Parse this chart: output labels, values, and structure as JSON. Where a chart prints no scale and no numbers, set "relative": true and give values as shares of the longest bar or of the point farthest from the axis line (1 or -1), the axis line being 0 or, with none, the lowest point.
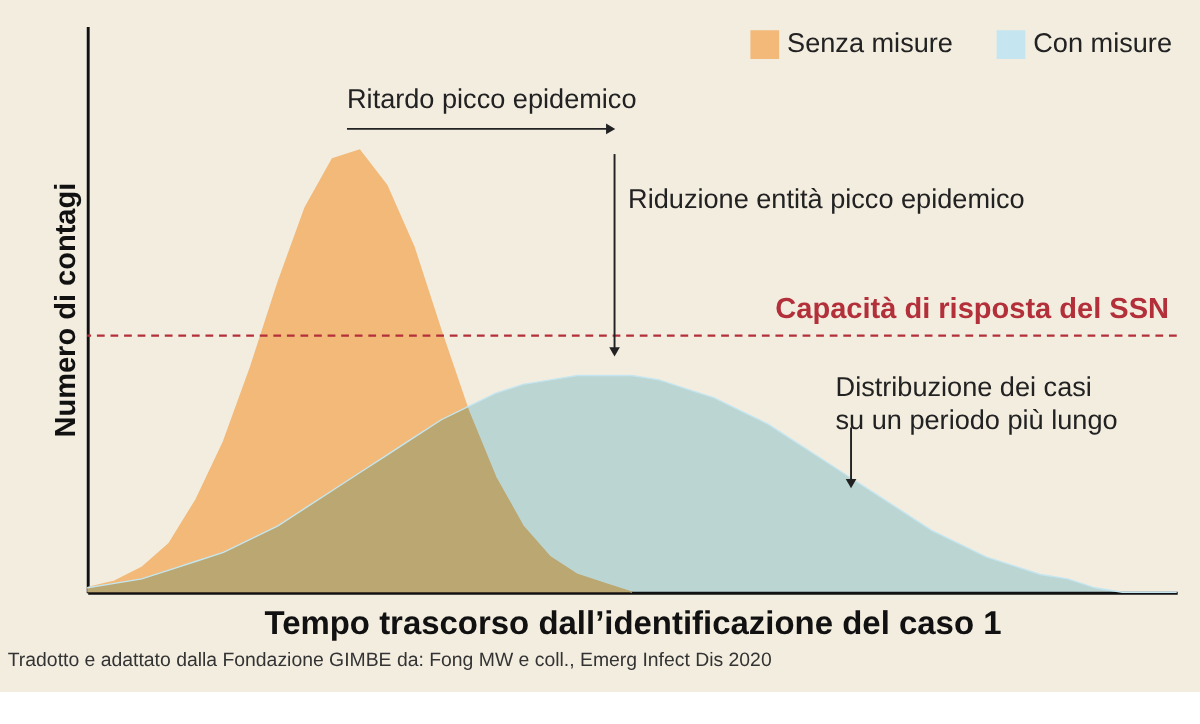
{
  "chart_data": {
    "type": "area",
    "relative": true,
    "xlabel": "Tempo trascorso dall’identificazione del caso 1",
    "ylabel": "Numero di contagi",
    "categories": [
      null,
      null,
      null,
      null,
      null,
      null,
      null,
      null,
      null,
      null,
      null,
      null,
      null,
      null,
      null,
      null,
      null,
      null,
      null,
      null,
      null,
      null,
      null,
      null,
      null,
      null,
      null,
      null,
      null,
      null,
      null,
      null,
      null,
      null,
      null,
      null,
      null,
      null,
      null,
      null,
      null
    ],
    "series": [
      {
        "name": "Senza misure",
        "color": "#f2b978",
        "values": [
          0.01,
          0.025,
          0.056,
          0.11,
          0.21,
          0.34,
          0.51,
          0.7,
          0.87,
          0.98,
          1.0,
          0.92,
          0.78,
          0.59,
          0.41,
          0.26,
          0.15,
          0.08,
          0.04,
          0.02,
          0,
          null,
          null,
          null,
          null,
          null,
          null,
          null,
          null,
          null,
          null,
          null,
          null,
          null,
          null,
          null,
          null,
          null,
          null,
          null,
          null
        ]
      },
      {
        "name": "Con misure",
        "color": "#c5e6f0",
        "values": [
          0.01,
          0.02,
          0.03,
          0.05,
          0.07,
          0.09,
          0.12,
          0.15,
          0.19,
          0.23,
          0.27,
          0.31,
          0.35,
          0.39,
          0.42,
          0.45,
          0.47,
          0.48,
          0.49,
          0.49,
          0.49,
          0.48,
          0.46,
          0.44,
          0.41,
          0.38,
          0.34,
          0.3,
          0.26,
          0.22,
          0.18,
          0.14,
          0.11,
          0.08,
          0.06,
          0.04,
          0.03,
          0.01,
          0,
          0,
          0
        ]
      }
    ],
    "ref_lines": [
      {
        "axis": "y",
        "value": 0.58,
        "label": "Capacità di risposta del SSN",
        "color": "#b3303a",
        "line_style": "dashed"
      }
    ],
    "annotations": [
      "Ritardo picco epidemico",
      "Riduzione entità picco epidemico",
      "Distribuzione dei casi\nsu un periodo più lungo",
      "Tradotto e adattato dalla Fondazione GIMBE da: Fong MW e coll., Emerg Infect Dis 2020"
    ],
    "legend": "top right",
    "grid": false
  }
}
